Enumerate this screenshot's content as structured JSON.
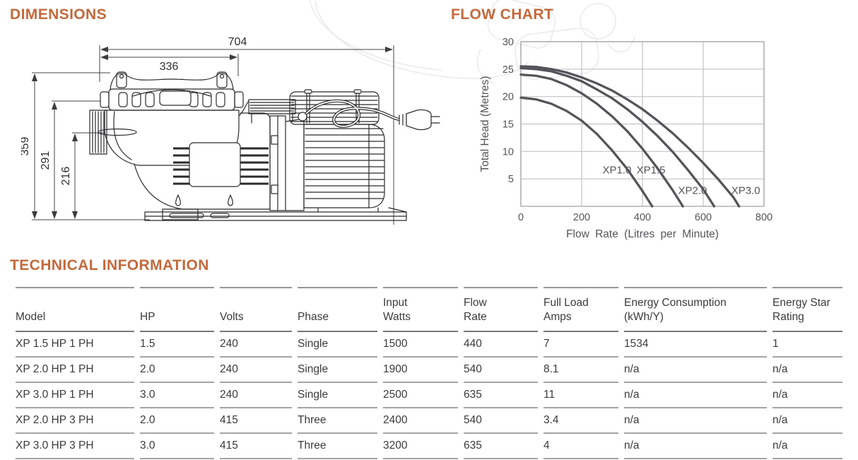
{
  "page": {
    "headings": {
      "dimensions": "DIMENSIONS",
      "flow_chart": "FLOW CHART",
      "technical_information": "TECHNICAL INFORMATION"
    },
    "accent_color": "#c4693c"
  },
  "drawing": {
    "units": "mm",
    "dimensions": {
      "overall_length": "704",
      "lid_width": "336",
      "overall_height": "359",
      "port_height": "291",
      "inlet_height": "216"
    }
  },
  "chart_data": {
    "type": "line",
    "title": "",
    "xlabel": "Flow Rate (Litres per Minute)",
    "ylabel": "Total Head (Metres)",
    "xlim": [
      0,
      800
    ],
    "ylim": [
      0,
      30
    ],
    "x_ticks": [
      0,
      200,
      400,
      600,
      800
    ],
    "y_ticks": [
      5,
      10,
      15,
      20,
      25,
      30
    ],
    "grid": true,
    "legend_position": "inline-labels",
    "line_color": "#54555a",
    "grid_color": "#c3c3c5",
    "series": [
      {
        "name": "XP1.0",
        "label_pos": [
          316,
          6.6
        ],
        "points": [
          [
            0,
            19.8
          ],
          [
            50,
            19.5
          ],
          [
            100,
            18.7
          ],
          [
            150,
            17.4
          ],
          [
            200,
            15.6
          ],
          [
            250,
            13.2
          ],
          [
            300,
            10.2
          ],
          [
            350,
            6.8
          ],
          [
            400,
            2.8
          ],
          [
            432,
            0
          ]
        ]
      },
      {
        "name": "XP1.5",
        "label_pos": [
          428,
          6.6
        ],
        "points": [
          [
            0,
            24
          ],
          [
            50,
            23.8
          ],
          [
            100,
            23.2
          ],
          [
            150,
            22.1
          ],
          [
            200,
            20.6
          ],
          [
            250,
            18.7
          ],
          [
            300,
            16.4
          ],
          [
            350,
            13.7
          ],
          [
            400,
            10.5
          ],
          [
            450,
            6.9
          ],
          [
            500,
            2.9
          ],
          [
            533,
            0
          ]
        ]
      },
      {
        "name": "XP2.0",
        "label_pos": [
          565,
          2.9
        ],
        "points": [
          [
            0,
            25.2
          ],
          [
            50,
            25.0
          ],
          [
            100,
            24.6
          ],
          [
            150,
            23.8
          ],
          [
            200,
            22.8
          ],
          [
            250,
            21.3
          ],
          [
            300,
            19.7
          ],
          [
            350,
            17.7
          ],
          [
            400,
            15.4
          ],
          [
            450,
            12.8
          ],
          [
            500,
            9.9
          ],
          [
            550,
            6.6
          ],
          [
            600,
            3.1
          ],
          [
            636,
            0
          ]
        ]
      },
      {
        "name": "XP3.0",
        "label_pos": [
          740,
          2.9
        ],
        "points": [
          [
            0,
            25.5
          ],
          [
            50,
            25.4
          ],
          [
            100,
            25.0
          ],
          [
            150,
            24.4
          ],
          [
            200,
            23.5
          ],
          [
            250,
            22.4
          ],
          [
            300,
            21.1
          ],
          [
            350,
            19.5
          ],
          [
            400,
            17.7
          ],
          [
            450,
            15.6
          ],
          [
            500,
            13.3
          ],
          [
            550,
            10.7
          ],
          [
            600,
            7.9
          ],
          [
            650,
            4.9
          ],
          [
            700,
            1.6
          ],
          [
            718,
            0
          ]
        ]
      }
    ]
  },
  "table": {
    "columns": [
      "Model",
      "HP",
      "Volts",
      "Phase",
      "Input\nWatts",
      "Flow\nRate",
      "Full Load\nAmps",
      "Energy Consumption\n(kWh/Y)",
      "Energy Star\nRating"
    ],
    "rows": [
      [
        "XP 1.5 HP 1 PH",
        "1.5",
        "240",
        "Single",
        "1500",
        "440",
        "7",
        "1534",
        "1"
      ],
      [
        "XP 2.0 HP 1 PH",
        "2.0",
        "240",
        "Single",
        "1900",
        "540",
        "8.1",
        "n/a",
        "n/a"
      ],
      [
        "XP 3.0 HP 1 PH",
        "3.0",
        "240",
        "Single",
        "2500",
        "635",
        "11",
        "n/a",
        "n/a"
      ],
      [
        "XP 2.0 HP 3 PH",
        "2.0",
        "415",
        "Three",
        "2400",
        "540",
        "3.4",
        "n/a",
        "n/a"
      ],
      [
        "XP 3.0 HP 3 PH",
        "3.0",
        "415",
        "Three",
        "3200",
        "635",
        "4",
        "n/a",
        "n/a"
      ]
    ]
  }
}
